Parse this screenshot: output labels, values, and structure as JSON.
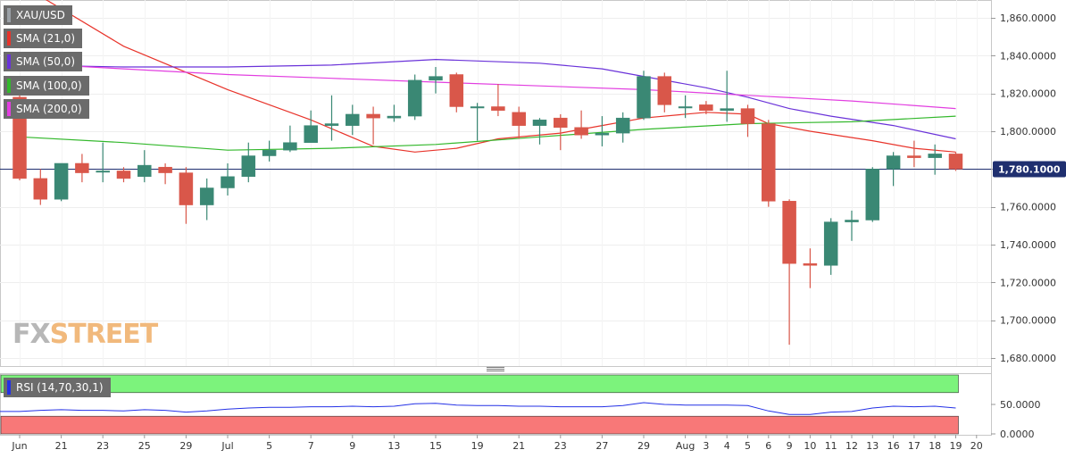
{
  "legend": {
    "symbol": "XAU/USD",
    "sma21": "SMA (21,0)",
    "sma50": "SMA (50,0)",
    "sma100": "SMA (100,0)",
    "sma200": "SMA (200,0)",
    "rsi": "RSI (14,70,30,1)"
  },
  "watermark": {
    "part1": "FX",
    "part2": "STREET"
  },
  "colors": {
    "bull": "#3a8874",
    "bear": "#d9574a",
    "sma21": "#e8342b",
    "sma50": "#6a32d9",
    "sma100": "#33b82c",
    "sma200": "#e23ee0",
    "price_line": "#1f2f6f",
    "rsi_line": "#2431e6",
    "rsi_overbought": "#7cf37c",
    "rsi_oversold": "#f87878"
  },
  "chart_data": {
    "type": "candlestick",
    "symbol": "XAU/USD",
    "y_axis": {
      "min": 1680,
      "max": 1860,
      "step": 20,
      "tick_labels": [
        "1,860.0000",
        "1,840.0000",
        "1,820.0000",
        "1,800.0000",
        "1,780.0000",
        "1,760.0000",
        "1,740.0000",
        "1,720.0000",
        "1,700.0000",
        "1,680.0000"
      ]
    },
    "current_price": 1780.1,
    "current_price_label": "1,780.1000",
    "x_axis_labels": [
      {
        "label": "Jun",
        "i": 0
      },
      {
        "label": "21",
        "i": 2
      },
      {
        "label": "23",
        "i": 4
      },
      {
        "label": "25",
        "i": 6
      },
      {
        "label": "29",
        "i": 8
      },
      {
        "label": "Jul",
        "i": 10
      },
      {
        "label": "5",
        "i": 12
      },
      {
        "label": "7",
        "i": 14
      },
      {
        "label": "9",
        "i": 16
      },
      {
        "label": "13",
        "i": 18
      },
      {
        "label": "15",
        "i": 20
      },
      {
        "label": "19",
        "i": 22
      },
      {
        "label": "21",
        "i": 24
      },
      {
        "label": "23",
        "i": 26
      },
      {
        "label": "27",
        "i": 28
      },
      {
        "label": "29",
        "i": 30
      },
      {
        "label": "Aug",
        "i": 32
      },
      {
        "label": "3",
        "i": 33
      },
      {
        "label": "4",
        "i": 34
      },
      {
        "label": "5",
        "i": 35
      },
      {
        "label": "6",
        "i": 36
      },
      {
        "label": "9",
        "i": 37
      },
      {
        "label": "10",
        "i": 38
      },
      {
        "label": "11",
        "i": 39
      },
      {
        "label": "12",
        "i": 40
      },
      {
        "label": "13",
        "i": 41
      },
      {
        "label": "16",
        "i": 42
      },
      {
        "label": "17",
        "i": 43
      },
      {
        "label": "18",
        "i": 44
      },
      {
        "label": "19",
        "i": 45
      },
      {
        "label": "20",
        "i": 46
      }
    ],
    "candles": [
      {
        "i": 0,
        "o": 1818,
        "h": 1822,
        "l": 1774,
        "c": 1775
      },
      {
        "i": 1,
        "o": 1775,
        "h": 1780,
        "l": 1761,
        "c": 1764
      },
      {
        "i": 2,
        "o": 1764,
        "h": 1783,
        "l": 1763,
        "c": 1783
      },
      {
        "i": 3,
        "o": 1783,
        "h": 1788,
        "l": 1773,
        "c": 1778
      },
      {
        "i": 4,
        "o": 1779,
        "h": 1794,
        "l": 1773,
        "c": 1779
      },
      {
        "i": 5,
        "o": 1779,
        "h": 1781,
        "l": 1773,
        "c": 1775
      },
      {
        "i": 6,
        "o": 1776,
        "h": 1790,
        "l": 1773,
        "c": 1782
      },
      {
        "i": 7,
        "o": 1781,
        "h": 1783,
        "l": 1772,
        "c": 1778
      },
      {
        "i": 8,
        "o": 1778,
        "h": 1781,
        "l": 1751,
        "c": 1761
      },
      {
        "i": 9,
        "o": 1761,
        "h": 1775,
        "l": 1753,
        "c": 1770
      },
      {
        "i": 10,
        "o": 1770,
        "h": 1783,
        "l": 1766,
        "c": 1776
      },
      {
        "i": 11,
        "o": 1776,
        "h": 1794,
        "l": 1773,
        "c": 1787
      },
      {
        "i": 12,
        "o": 1787,
        "h": 1795,
        "l": 1784,
        "c": 1790
      },
      {
        "i": 13,
        "o": 1790,
        "h": 1803,
        "l": 1789,
        "c": 1794
      },
      {
        "i": 14,
        "o": 1794,
        "h": 1811,
        "l": 1794,
        "c": 1803
      },
      {
        "i": 15,
        "o": 1803,
        "h": 1819,
        "l": 1795,
        "c": 1804
      },
      {
        "i": 16,
        "o": 1803,
        "h": 1814,
        "l": 1798,
        "c": 1809
      },
      {
        "i": 17,
        "o": 1809,
        "h": 1813,
        "l": 1793,
        "c": 1807
      },
      {
        "i": 18,
        "o": 1807,
        "h": 1814,
        "l": 1805,
        "c": 1808
      },
      {
        "i": 19,
        "o": 1808,
        "h": 1830,
        "l": 1806,
        "c": 1827
      },
      {
        "i": 20,
        "o": 1827,
        "h": 1834,
        "l": 1820,
        "c": 1829
      },
      {
        "i": 21,
        "o": 1830,
        "h": 1831,
        "l": 1810,
        "c": 1813
      },
      {
        "i": 22,
        "o": 1813,
        "h": 1815,
        "l": 1795,
        "c": 1813
      },
      {
        "i": 23,
        "o": 1813,
        "h": 1825,
        "l": 1808,
        "c": 1811
      },
      {
        "i": 24,
        "o": 1810,
        "h": 1813,
        "l": 1796,
        "c": 1803
      },
      {
        "i": 25,
        "o": 1803,
        "h": 1807,
        "l": 1793,
        "c": 1806
      },
      {
        "i": 26,
        "o": 1807,
        "h": 1809,
        "l": 1790,
        "c": 1802
      },
      {
        "i": 27,
        "o": 1802,
        "h": 1811,
        "l": 1796,
        "c": 1798
      },
      {
        "i": 28,
        "o": 1798,
        "h": 1808,
        "l": 1792,
        "c": 1799
      },
      {
        "i": 29,
        "o": 1799,
        "h": 1810,
        "l": 1794,
        "c": 1807
      },
      {
        "i": 30,
        "o": 1807,
        "h": 1832,
        "l": 1806,
        "c": 1829
      },
      {
        "i": 31,
        "o": 1829,
        "h": 1831,
        "l": 1810,
        "c": 1814
      },
      {
        "i": 32,
        "o": 1813,
        "h": 1819,
        "l": 1807,
        "c": 1813
      },
      {
        "i": 33,
        "o": 1814,
        "h": 1816,
        "l": 1809,
        "c": 1811
      },
      {
        "i": 34,
        "o": 1811,
        "h": 1832,
        "l": 1805,
        "c": 1812
      },
      {
        "i": 35,
        "o": 1812,
        "h": 1814,
        "l": 1797,
        "c": 1804
      },
      {
        "i": 36,
        "o": 1804,
        "h": 1806,
        "l": 1760,
        "c": 1763
      },
      {
        "i": 37,
        "o": 1763,
        "h": 1764,
        "l": 1687,
        "c": 1730
      },
      {
        "i": 38,
        "o": 1730,
        "h": 1738,
        "l": 1717,
        "c": 1729
      },
      {
        "i": 39,
        "o": 1729,
        "h": 1754,
        "l": 1724,
        "c": 1752
      },
      {
        "i": 40,
        "o": 1752,
        "h": 1758,
        "l": 1742,
        "c": 1753
      },
      {
        "i": 41,
        "o": 1753,
        "h": 1781,
        "l": 1752,
        "c": 1780
      },
      {
        "i": 42,
        "o": 1780,
        "h": 1789,
        "l": 1771,
        "c": 1787
      },
      {
        "i": 43,
        "o": 1787,
        "h": 1795,
        "l": 1781,
        "c": 1786
      },
      {
        "i": 44,
        "o": 1786,
        "h": 1793,
        "l": 1777,
        "c": 1788
      },
      {
        "i": 45,
        "o": 1788,
        "h": 1789,
        "l": 1779,
        "c": 1780
      }
    ],
    "sma": [
      {
        "name": "SMA (21,0)",
        "color": "#e8342b",
        "points": [
          [
            0,
            1878
          ],
          [
            5,
            1845
          ],
          [
            10,
            1822
          ],
          [
            14,
            1806
          ],
          [
            17,
            1792
          ],
          [
            19,
            1789
          ],
          [
            21,
            1791
          ],
          [
            23,
            1796
          ],
          [
            26,
            1799
          ],
          [
            28,
            1803
          ],
          [
            30,
            1807
          ],
          [
            33,
            1810
          ],
          [
            35,
            1809
          ],
          [
            36,
            1804
          ],
          [
            38,
            1800
          ],
          [
            41,
            1795
          ],
          [
            43,
            1791
          ],
          [
            45,
            1789
          ]
        ]
      },
      {
        "name": "SMA (50,0)",
        "color": "#6a32d9",
        "points": [
          [
            0,
            1835
          ],
          [
            5,
            1834
          ],
          [
            10,
            1834
          ],
          [
            15,
            1835
          ],
          [
            20,
            1838
          ],
          [
            25,
            1836
          ],
          [
            28,
            1833
          ],
          [
            30,
            1829
          ],
          [
            33,
            1823
          ],
          [
            35,
            1818
          ],
          [
            37,
            1812
          ],
          [
            39,
            1808
          ],
          [
            42,
            1803
          ],
          [
            45,
            1796
          ]
        ]
      },
      {
        "name": "SMA (100,0)",
        "color": "#33b82c",
        "points": [
          [
            0,
            1797
          ],
          [
            5,
            1794
          ],
          [
            10,
            1790
          ],
          [
            15,
            1791
          ],
          [
            20,
            1793
          ],
          [
            25,
            1797
          ],
          [
            30,
            1801
          ],
          [
            35,
            1804
          ],
          [
            40,
            1805
          ],
          [
            45,
            1808
          ]
        ]
      },
      {
        "name": "SMA (200,0)",
        "color": "#e23ee0",
        "points": [
          [
            0,
            1836
          ],
          [
            5,
            1833
          ],
          [
            10,
            1830
          ],
          [
            15,
            1828
          ],
          [
            20,
            1826
          ],
          [
            25,
            1824
          ],
          [
            30,
            1822
          ],
          [
            35,
            1819
          ],
          [
            40,
            1816
          ],
          [
            45,
            1812
          ]
        ]
      }
    ],
    "rsi": {
      "label": "RSI (14,70,30,1)",
      "overbought": 70,
      "oversold": 30,
      "y_axis_labels": [
        "50.0000",
        "0.0000"
      ],
      "values": [
        [
          0,
          38
        ],
        [
          1,
          40
        ],
        [
          2,
          41
        ],
        [
          3,
          40
        ],
        [
          4,
          40
        ],
        [
          5,
          39
        ],
        [
          6,
          41
        ],
        [
          7,
          40
        ],
        [
          8,
          37
        ],
        [
          9,
          39
        ],
        [
          10,
          42
        ],
        [
          11,
          44
        ],
        [
          12,
          45
        ],
        [
          13,
          45
        ],
        [
          14,
          46
        ],
        [
          15,
          46
        ],
        [
          16,
          47
        ],
        [
          17,
          46
        ],
        [
          18,
          47
        ],
        [
          19,
          51
        ],
        [
          20,
          52
        ],
        [
          21,
          49
        ],
        [
          22,
          48
        ],
        [
          23,
          48
        ],
        [
          24,
          47
        ],
        [
          25,
          47
        ],
        [
          26,
          46
        ],
        [
          27,
          46
        ],
        [
          28,
          46
        ],
        [
          29,
          48
        ],
        [
          30,
          53
        ],
        [
          31,
          50
        ],
        [
          32,
          49
        ],
        [
          33,
          49
        ],
        [
          34,
          49
        ],
        [
          35,
          48
        ],
        [
          36,
          39
        ],
        [
          37,
          33
        ],
        [
          38,
          33
        ],
        [
          39,
          37
        ],
        [
          40,
          38
        ],
        [
          41,
          44
        ],
        [
          42,
          47
        ],
        [
          43,
          46
        ],
        [
          44,
          47
        ],
        [
          45,
          44
        ]
      ]
    }
  }
}
